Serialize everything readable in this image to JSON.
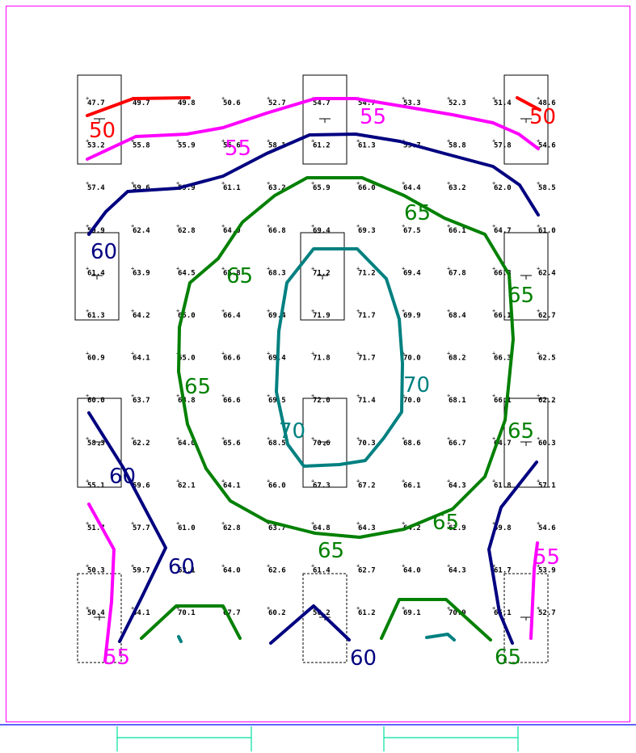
{
  "grid_values": [
    [
      "47.7",
      "49.7",
      "49.8",
      "50.6",
      "52.7",
      "54.7",
      "54.7",
      "53.3",
      "52.3",
      "51.4",
      "48.6"
    ],
    [
      "53.2",
      "55.8",
      "55.9",
      "56.6",
      "58.1",
      "61.2",
      "61.3",
      "59.7",
      "58.8",
      "57.8",
      "54.6"
    ],
    [
      "57.4",
      "59.6",
      "59.9",
      "61.1",
      "63.2",
      "65.9",
      "66.0",
      "64.4",
      "63.2",
      "62.0",
      "58.5"
    ],
    [
      "59.9",
      "62.4",
      "62.8",
      "64.0",
      "66.8",
      "69.4",
      "69.3",
      "67.5",
      "66.1",
      "64.7",
      "61.0"
    ],
    [
      "61.4",
      "63.9",
      "64.5",
      "65.8",
      "68.3",
      "71.2",
      "71.2",
      "69.4",
      "67.8",
      "66.3",
      "62.4"
    ],
    [
      "61.3",
      "64.2",
      "65.0",
      "66.4",
      "69.4",
      "71.9",
      "71.7",
      "69.9",
      "68.4",
      "66.1",
      "62.7"
    ],
    [
      "60.9",
      "64.1",
      "65.0",
      "66.6",
      "69.4",
      "71.8",
      "71.7",
      "70.0",
      "68.2",
      "66.3",
      "62.5"
    ],
    [
      "60.0",
      "63.7",
      "64.8",
      "66.6",
      "69.5",
      "72.0",
      "71.4",
      "70.0",
      "68.1",
      "66.1",
      "62.2"
    ],
    [
      "58.3",
      "62.2",
      "64.0",
      "65.6",
      "68.5",
      "70.6",
      "70.3",
      "68.6",
      "66.7",
      "64.7",
      "60.3"
    ],
    [
      "55.1",
      "59.6",
      "62.1",
      "64.1",
      "66.0",
      "67.3",
      "67.2",
      "66.1",
      "64.3",
      "61.8",
      "57.1"
    ],
    [
      "51.7",
      "57.7",
      "61.0",
      "62.8",
      "63.7",
      "64.8",
      "64.3",
      "64.2",
      "62.9",
      "59.8",
      "54.6"
    ],
    [
      "50.3",
      "59.7",
      "63.1",
      "64.0",
      "62.6",
      "61.4",
      "62.7",
      "64.0",
      "64.3",
      "61.7",
      "53.9"
    ],
    [
      "50.4",
      "64.1",
      "70.1",
      "67.7",
      "60.2",
      "56.2",
      "61.2",
      "69.1",
      "70.9",
      "65.1",
      "52.7"
    ]
  ],
  "contour_labels": [
    {
      "text": "50",
      "level": "50"
    },
    {
      "text": "50",
      "level": "50"
    },
    {
      "text": "55",
      "level": "55"
    },
    {
      "text": "55",
      "level": "55"
    },
    {
      "text": "55",
      "level": "55"
    },
    {
      "text": "55",
      "level": "55"
    },
    {
      "text": "60",
      "level": "60"
    },
    {
      "text": "60",
      "level": "60"
    },
    {
      "text": "60",
      "level": "60"
    },
    {
      "text": "60",
      "level": "60"
    },
    {
      "text": "65",
      "level": "65"
    },
    {
      "text": "65",
      "level": "65"
    },
    {
      "text": "65",
      "level": "65"
    },
    {
      "text": "65",
      "level": "65"
    },
    {
      "text": "65",
      "level": "65"
    },
    {
      "text": "65",
      "level": "65"
    },
    {
      "text": "65",
      "level": "65"
    },
    {
      "text": "65",
      "level": "65"
    },
    {
      "text": "70",
      "level": "70"
    },
    {
      "text": "70",
      "level": "70"
    }
  ],
  "level_colors": {
    "50": "#ff0000",
    "55": "#ff00ff",
    "60": "#000080",
    "65": "#008000",
    "70": "#008080"
  },
  "colors": {
    "border": "#ff00ff",
    "baseline": "#0000ff",
    "dimension": "#00e0a0",
    "fixture": "#000000"
  },
  "fixture_symbol": "luminaire-symbol"
}
